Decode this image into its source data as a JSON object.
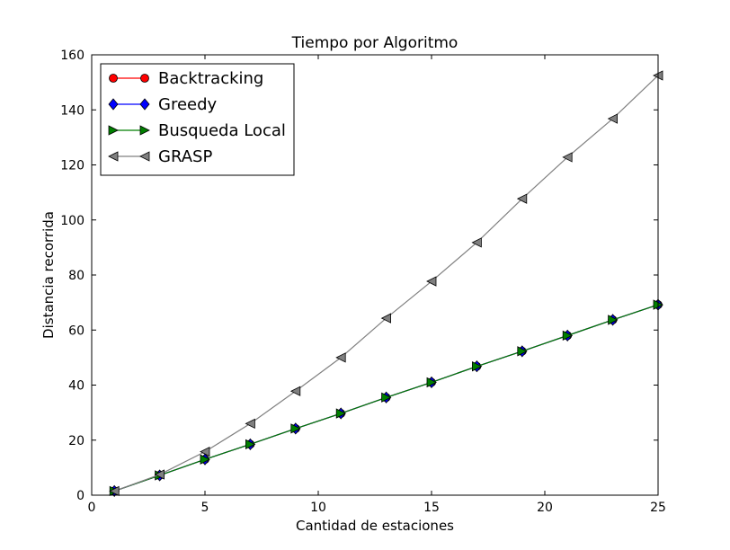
{
  "chart_data": {
    "type": "line",
    "title": "Tiempo por Algoritmo",
    "xlabel": "Cantidad de estaciones",
    "ylabel": "Distancia recorrida",
    "xlim": [
      0,
      25
    ],
    "ylim": [
      0,
      160
    ],
    "xticks": [
      0,
      5,
      10,
      15,
      20,
      25
    ],
    "yticks": [
      0,
      20,
      40,
      60,
      80,
      100,
      120,
      140,
      160
    ],
    "grid": false,
    "legend_position": "top-left",
    "x": [
      1,
      3,
      5,
      7,
      9,
      11,
      13,
      15,
      17,
      19,
      21,
      23,
      25
    ],
    "series": [
      {
        "name": "Backtracking",
        "color": "#ff0000",
        "marker": "circle",
        "values": [
          1.5,
          7.2,
          13.0,
          18.5,
          24.2,
          29.7,
          35.5,
          41.0,
          46.8,
          52.3,
          58.0,
          63.7,
          69.2
        ]
      },
      {
        "name": "Greedy",
        "color": "#0000ff",
        "marker": "diamond",
        "values": [
          1.5,
          7.2,
          13.0,
          18.5,
          24.2,
          29.7,
          35.5,
          41.0,
          46.8,
          52.3,
          58.0,
          63.7,
          69.2
        ]
      },
      {
        "name": "Busqueda Local",
        "color": "#007f00",
        "marker": "triangle-right",
        "values": [
          1.5,
          7.2,
          13.0,
          18.5,
          24.2,
          29.7,
          35.5,
          41.0,
          46.8,
          52.3,
          58.0,
          63.7,
          69.2
        ]
      },
      {
        "name": "GRASP",
        "color": "#808080",
        "marker": "triangle-left",
        "values": [
          1.5,
          7.5,
          15.8,
          26.0,
          37.8,
          50.0,
          64.3,
          77.7,
          91.8,
          107.7,
          122.8,
          136.8,
          152.5
        ]
      }
    ]
  }
}
